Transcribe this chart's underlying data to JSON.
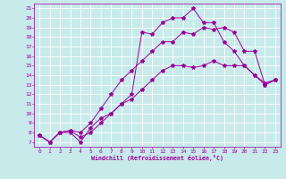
{
  "xlabel": "Windchill (Refroidissement éolien,°C)",
  "bg_color": "#c8eaea",
  "line_color": "#990099",
  "grid_color": "#ffffff",
  "xlim": [
    -0.5,
    23.5
  ],
  "ylim": [
    6.5,
    21.5
  ],
  "xticks": [
    0,
    1,
    2,
    3,
    4,
    5,
    6,
    7,
    8,
    9,
    10,
    11,
    12,
    13,
    14,
    15,
    16,
    17,
    18,
    19,
    20,
    21,
    22,
    23
  ],
  "yticks": [
    7,
    8,
    9,
    10,
    11,
    12,
    13,
    14,
    15,
    16,
    17,
    18,
    19,
    20,
    21
  ],
  "series": [
    {
      "x": [
        0,
        1,
        2,
        3,
        4,
        5,
        6,
        7,
        8,
        9,
        10,
        11,
        12,
        13,
        14,
        15,
        16,
        17,
        18,
        19,
        20,
        21,
        22,
        23
      ],
      "y": [
        7.7,
        7.0,
        8.0,
        8.0,
        7.0,
        8.5,
        9.5,
        10.0,
        11.0,
        11.5,
        12.5,
        13.5,
        14.5,
        15.0,
        15.0,
        14.8,
        15.0,
        15.5,
        15.0,
        15.0,
        15.0,
        14.0,
        13.2,
        13.5
      ]
    },
    {
      "x": [
        0,
        1,
        2,
        3,
        4,
        5,
        6,
        7,
        8,
        9,
        10,
        11,
        12,
        13,
        14,
        15,
        16,
        17,
        18,
        19,
        20,
        21,
        22,
        23
      ],
      "y": [
        7.7,
        7.0,
        8.0,
        8.2,
        8.0,
        9.0,
        10.5,
        12.0,
        13.5,
        14.5,
        15.5,
        16.5,
        17.5,
        17.5,
        18.5,
        18.3,
        19.0,
        18.8,
        19.0,
        18.5,
        16.5,
        16.5,
        13.0,
        13.5
      ]
    },
    {
      "x": [
        0,
        1,
        2,
        3,
        4,
        5,
        6,
        7,
        8,
        9,
        10,
        11,
        12,
        13,
        14,
        15,
        16,
        17,
        18,
        19,
        20,
        21,
        22,
        23
      ],
      "y": [
        7.7,
        7.0,
        8.0,
        8.2,
        7.5,
        8.0,
        9.0,
        10.0,
        11.0,
        12.0,
        18.5,
        18.3,
        19.5,
        20.0,
        20.0,
        21.0,
        19.5,
        19.5,
        17.5,
        16.5,
        15.0,
        14.0,
        13.0,
        13.5
      ]
    }
  ]
}
